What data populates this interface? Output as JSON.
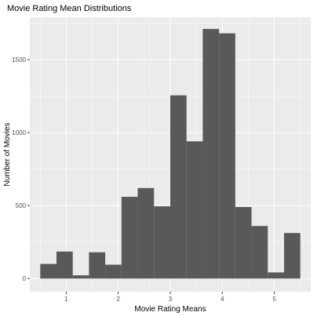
{
  "chart_data": {
    "type": "bar",
    "title": "Movie Rating Mean Distributions",
    "xlabel": "Movie Rating Means",
    "ylabel": "Number of Movies",
    "bin_width": 0.3125,
    "x_start": 0.5,
    "bins": [
      {
        "x0": 0.5,
        "x1": 0.8125,
        "count": 100
      },
      {
        "x0": 0.8125,
        "x1": 1.125,
        "count": 185
      },
      {
        "x0": 1.125,
        "x1": 1.4375,
        "count": 22
      },
      {
        "x0": 1.4375,
        "x1": 1.75,
        "count": 180
      },
      {
        "x0": 1.75,
        "x1": 2.0625,
        "count": 95
      },
      {
        "x0": 2.0625,
        "x1": 2.375,
        "count": 560
      },
      {
        "x0": 2.375,
        "x1": 2.6875,
        "count": 620
      },
      {
        "x0": 2.6875,
        "x1": 3.0,
        "count": 495
      },
      {
        "x0": 3.0,
        "x1": 3.3125,
        "count": 1255
      },
      {
        "x0": 3.3125,
        "x1": 3.625,
        "count": 940
      },
      {
        "x0": 3.625,
        "x1": 3.9375,
        "count": 1710
      },
      {
        "x0": 3.9375,
        "x1": 4.25,
        "count": 1680
      },
      {
        "x0": 4.25,
        "x1": 4.5625,
        "count": 490
      },
      {
        "x0": 4.5625,
        "x1": 4.875,
        "count": 360
      },
      {
        "x0": 4.875,
        "x1": 5.1875,
        "count": 42
      },
      {
        "x0": 5.1875,
        "x1": 5.5,
        "count": 312
      }
    ],
    "xlim": [
      0.3,
      5.7
    ],
    "ylim": [
      -90,
      1790
    ],
    "x_ticks": [
      1,
      2,
      3,
      4,
      5
    ],
    "y_ticks": [
      0,
      500,
      1000,
      1500
    ],
    "grid": true,
    "colors": {
      "panel": "#ebebeb",
      "grid_major": "#ffffff",
      "bar": "#595959",
      "tick": "#333333"
    }
  }
}
